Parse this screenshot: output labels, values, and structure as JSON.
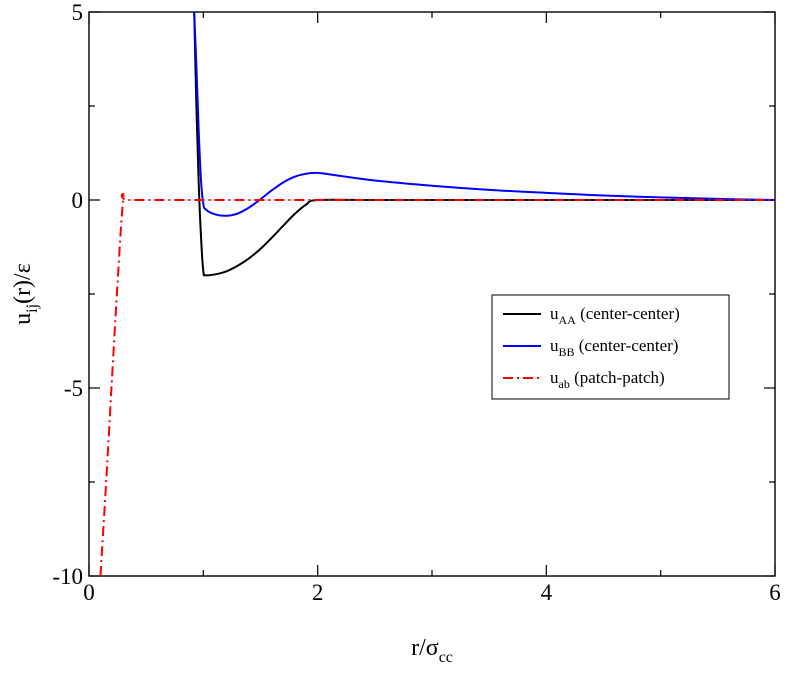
{
  "chart_data": {
    "type": "line",
    "title": "",
    "xlabel": {
      "main": "r/σ",
      "sub": "cc"
    },
    "ylabel": {
      "main": "u",
      "sub": "ij",
      "rest": "(r)/ε"
    },
    "xlim": [
      0,
      6
    ],
    "ylim": [
      -10,
      5
    ],
    "x_ticks": [
      0,
      2,
      4,
      6
    ],
    "y_ticks": [
      -10,
      -5,
      0,
      5
    ],
    "x_tick_labels": [
      "0",
      "2",
      "4",
      "6"
    ],
    "y_tick_labels": [
      "-10",
      "-5",
      "0",
      "5"
    ],
    "grid": false,
    "legend_placement": "center-right",
    "series": [
      {
        "name": "u_AA (center-center)",
        "legend": {
          "main": "u",
          "sub": "AA",
          "rest": " (center-center)"
        },
        "color": "#000000",
        "dash": "solid",
        "x": [
          0.92,
          0.94,
          0.96,
          0.98,
          1.0,
          1.02,
          1.1,
          1.2,
          1.3,
          1.4,
          1.5,
          1.6,
          1.7,
          1.8,
          1.9,
          2.0,
          2.5,
          3.0,
          4.0,
          5.0,
          6.0
        ],
        "y": [
          5.0,
          2.4,
          0.4,
          -1.0,
          -1.9,
          -2.0,
          -1.98,
          -1.9,
          -1.75,
          -1.55,
          -1.3,
          -1.0,
          -0.68,
          -0.37,
          -0.12,
          0.0,
          0.0,
          0.0,
          0.0,
          0.0,
          0.0
        ]
      },
      {
        "name": "u_BB (center-center)",
        "legend": {
          "main": "u",
          "sub": "BB",
          "rest": " (center-center)"
        },
        "color": "#0000ff",
        "dash": "solid",
        "x": [
          0.92,
          0.94,
          0.96,
          0.98,
          1.0,
          1.02,
          1.1,
          1.2,
          1.3,
          1.4,
          1.5,
          1.6,
          1.7,
          1.8,
          1.9,
          2.0,
          2.2,
          2.5,
          3.0,
          3.5,
          4.0,
          4.5,
          5.0,
          5.5,
          6.0
        ],
        "y": [
          5.0,
          3.5,
          1.8,
          0.5,
          -0.1,
          -0.25,
          -0.38,
          -0.42,
          -0.36,
          -0.2,
          0.02,
          0.26,
          0.47,
          0.62,
          0.7,
          0.72,
          0.64,
          0.52,
          0.38,
          0.27,
          0.19,
          0.12,
          0.07,
          0.03,
          0.0
        ]
      },
      {
        "name": "u_ab (patch-patch)",
        "legend": {
          "main": "u",
          "sub": "ab",
          "rest": "  (patch-patch)"
        },
        "color": "#ff0000",
        "dash": "dashdot",
        "x": [
          0.1,
          0.15,
          0.2,
          0.25,
          0.3,
          0.35,
          1.0,
          2.0,
          4.0,
          6.0
        ],
        "y": [
          -10.0,
          -7.5,
          -4.8,
          -2.2,
          0.0,
          0.0,
          0.0,
          0.0,
          0.0,
          0.0
        ]
      }
    ]
  }
}
